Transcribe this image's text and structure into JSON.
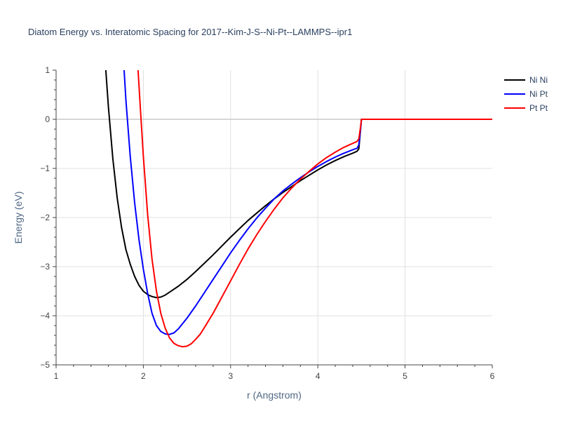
{
  "chart_data": {
    "type": "line",
    "title": "Diatom Energy vs. Interatomic Spacing for 2017--Kim-J-S--Ni-Pt--LAMMPS--ipr1",
    "xlabel": "r (Angstrom)",
    "ylabel": "Energy (eV)",
    "xlim": [
      1,
      6
    ],
    "ylim": [
      -5,
      1
    ],
    "x_ticks": [
      "1",
      "2",
      "3",
      "4",
      "5",
      "6"
    ],
    "y_ticks": [
      "1",
      "0",
      "−1",
      "−2",
      "−3",
      "−4",
      "−5"
    ],
    "grid": true,
    "legend_position": "top-right",
    "series": [
      {
        "name": "Ni Ni",
        "color": "#000000",
        "points": [
          [
            1.57,
            1.0
          ],
          [
            1.6,
            0.25
          ],
          [
            1.65,
            -0.8
          ],
          [
            1.7,
            -1.6
          ],
          [
            1.75,
            -2.2
          ],
          [
            1.8,
            -2.65
          ],
          [
            1.85,
            -2.95
          ],
          [
            1.9,
            -3.2
          ],
          [
            1.95,
            -3.38
          ],
          [
            2.0,
            -3.5
          ],
          [
            2.05,
            -3.57
          ],
          [
            2.1,
            -3.61
          ],
          [
            2.15,
            -3.63
          ],
          [
            2.2,
            -3.62
          ],
          [
            2.25,
            -3.58
          ],
          [
            2.3,
            -3.52
          ],
          [
            2.4,
            -3.4
          ],
          [
            2.5,
            -3.26
          ],
          [
            2.6,
            -3.1
          ],
          [
            2.7,
            -2.93
          ],
          [
            2.8,
            -2.76
          ],
          [
            2.9,
            -2.58
          ],
          [
            3.0,
            -2.4
          ],
          [
            3.1,
            -2.23
          ],
          [
            3.2,
            -2.06
          ],
          [
            3.3,
            -1.91
          ],
          [
            3.4,
            -1.76
          ],
          [
            3.5,
            -1.62
          ],
          [
            3.6,
            -1.49
          ],
          [
            3.7,
            -1.37
          ],
          [
            3.8,
            -1.25
          ],
          [
            3.9,
            -1.14
          ],
          [
            4.0,
            -1.03
          ],
          [
            4.1,
            -0.93
          ],
          [
            4.2,
            -0.84
          ],
          [
            4.3,
            -0.76
          ],
          [
            4.4,
            -0.69
          ],
          [
            4.45,
            -0.65
          ],
          [
            4.47,
            -0.6
          ],
          [
            4.49,
            -0.2
          ],
          [
            4.5,
            0.0
          ],
          [
            6.0,
            0.0
          ]
        ]
      },
      {
        "name": "Ni Pt",
        "color": "#0000ff",
        "points": [
          [
            1.78,
            1.0
          ],
          [
            1.8,
            0.4
          ],
          [
            1.85,
            -0.75
          ],
          [
            1.9,
            -1.7
          ],
          [
            1.95,
            -2.45
          ],
          [
            2.0,
            -3.05
          ],
          [
            2.05,
            -3.55
          ],
          [
            2.1,
            -3.95
          ],
          [
            2.15,
            -4.2
          ],
          [
            2.2,
            -4.32
          ],
          [
            2.25,
            -4.37
          ],
          [
            2.3,
            -4.38
          ],
          [
            2.35,
            -4.35
          ],
          [
            2.4,
            -4.27
          ],
          [
            2.5,
            -4.05
          ],
          [
            2.6,
            -3.8
          ],
          [
            2.7,
            -3.53
          ],
          [
            2.8,
            -3.26
          ],
          [
            2.9,
            -2.99
          ],
          [
            3.0,
            -2.72
          ],
          [
            3.1,
            -2.47
          ],
          [
            3.2,
            -2.23
          ],
          [
            3.3,
            -2.01
          ],
          [
            3.4,
            -1.81
          ],
          [
            3.5,
            -1.62
          ],
          [
            3.6,
            -1.46
          ],
          [
            3.7,
            -1.32
          ],
          [
            3.8,
            -1.19
          ],
          [
            3.9,
            -1.07
          ],
          [
            4.0,
            -0.96
          ],
          [
            4.1,
            -0.86
          ],
          [
            4.2,
            -0.77
          ],
          [
            4.3,
            -0.69
          ],
          [
            4.4,
            -0.62
          ],
          [
            4.45,
            -0.59
          ],
          [
            4.47,
            -0.52
          ],
          [
            4.49,
            -0.2
          ],
          [
            4.5,
            0.0
          ],
          [
            6.0,
            0.0
          ]
        ]
      },
      {
        "name": "Pt Pt",
        "color": "#ff0000",
        "points": [
          [
            1.94,
            1.0
          ],
          [
            1.96,
            0.4
          ],
          [
            2.0,
            -0.75
          ],
          [
            2.05,
            -1.95
          ],
          [
            2.1,
            -2.85
          ],
          [
            2.15,
            -3.5
          ],
          [
            2.2,
            -3.95
          ],
          [
            2.25,
            -4.25
          ],
          [
            2.3,
            -4.45
          ],
          [
            2.35,
            -4.56
          ],
          [
            2.4,
            -4.61
          ],
          [
            2.45,
            -4.63
          ],
          [
            2.5,
            -4.62
          ],
          [
            2.55,
            -4.57
          ],
          [
            2.6,
            -4.48
          ],
          [
            2.65,
            -4.38
          ],
          [
            2.7,
            -4.24
          ],
          [
            2.8,
            -3.95
          ],
          [
            2.9,
            -3.62
          ],
          [
            3.0,
            -3.29
          ],
          [
            3.1,
            -2.96
          ],
          [
            3.2,
            -2.64
          ],
          [
            3.3,
            -2.35
          ],
          [
            3.4,
            -2.08
          ],
          [
            3.5,
            -1.83
          ],
          [
            3.6,
            -1.6
          ],
          [
            3.7,
            -1.4
          ],
          [
            3.8,
            -1.22
          ],
          [
            3.9,
            -1.06
          ],
          [
            4.0,
            -0.91
          ],
          [
            4.1,
            -0.78
          ],
          [
            4.2,
            -0.67
          ],
          [
            4.3,
            -0.57
          ],
          [
            4.4,
            -0.49
          ],
          [
            4.45,
            -0.45
          ],
          [
            4.47,
            -0.4
          ],
          [
            4.49,
            -0.15
          ],
          [
            4.5,
            0.0
          ],
          [
            6.0,
            0.0
          ]
        ]
      }
    ]
  }
}
